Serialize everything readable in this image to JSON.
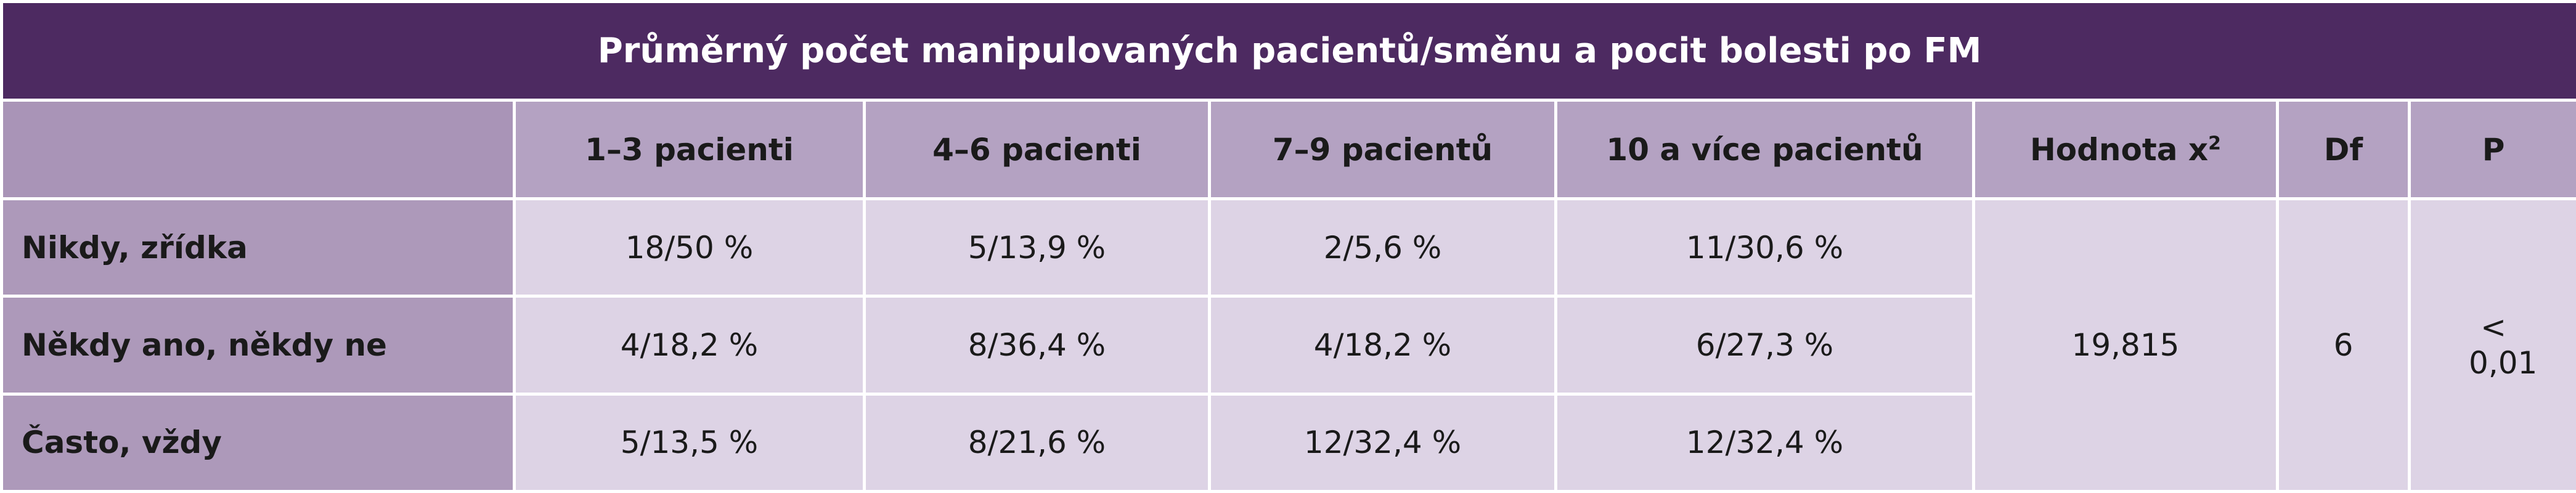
{
  "table": {
    "title": "Průměrný počet manipulovaných pacientů/směnu a pocit bolesti po FM",
    "headers": [
      "1–3 pacienti",
      "4–6 pacienti",
      "7–9 pacientů",
      "10 a více pacientů",
      "Hodnota x",
      "Df",
      "P"
    ],
    "chi_superscript": "2",
    "rows": [
      {
        "label": "Nikdy, zřídka",
        "values": [
          "18/50 %",
          "5/13,9 %",
          "2/5,6 %",
          "11/30,6 %"
        ]
      },
      {
        "label": "Někdy ano, někdy ne",
        "values": [
          "4/18,2 %",
          "8/36,4 %",
          "4/18,2 %",
          "6/27,3 %"
        ]
      },
      {
        "label": "Často, vždy",
        "values": [
          "5/13,5 %",
          "8/21,6 %",
          "12/32,4 %",
          "12/32,4 %"
        ]
      }
    ],
    "chi_value": "19,815",
    "df": "6",
    "p": "< 0,01"
  }
}
